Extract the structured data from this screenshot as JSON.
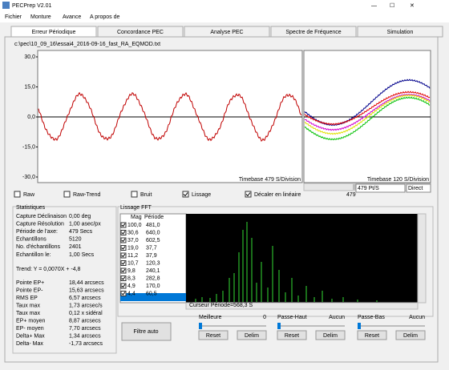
{
  "window": {
    "title": "PECPrep V2.01"
  },
  "menu": [
    "Fichier",
    "Monture",
    "Avance",
    "A propos de"
  ],
  "tabs": [
    "Erreur Périodique",
    "Concordance PEC",
    "Analyse PEC",
    "Spectre de Fréquence",
    "Simulation"
  ],
  "file_path": "c:\\pec\\10_09_16\\essai4_2016-09-16_fast_RA_EQMOD.txt",
  "plot": {
    "y_labels": [
      "30,0",
      "15,0",
      "0,0",
      "-15,0",
      "-30,0"
    ],
    "timebase_left": "Timebase 479 S/Division",
    "timebase_right": "Timebase 120 S/Division",
    "scroll_value": "479",
    "rate": "479 Pt/S",
    "mode": "Direct"
  },
  "options": [
    "Raw",
    "Raw-Trend",
    "Bruit",
    "Lissage",
    "Décaler en linéaire"
  ],
  "statistics": {
    "title": "Statistiques",
    "rows": [
      [
        "Capture Déclinaison",
        "0,00 deg"
      ],
      [
        "Capture Résolution",
        "1,00 asec/px"
      ],
      [
        "Période de l'axe:",
        "479 Secs"
      ],
      [
        "Echantillons",
        "5120"
      ],
      [
        "No. d'échantillons",
        "2401"
      ],
      [
        "Echantillon le:",
        "1,00 Secs"
      ]
    ],
    "trend": "Trend: Y = 0,0070X + -4,8",
    "rows2": [
      [
        "Pointe EP+",
        "18,44 arcsecs"
      ],
      [
        "Pointe EP-",
        "15,63 arcsecs"
      ],
      [
        "RMS EP",
        "6,57 arcsecs"
      ],
      [
        "Taux max",
        "1,73 arcsec/s"
      ],
      [
        "Taux max",
        "0,12 x sidéral"
      ],
      [
        "EP+ moyen",
        "8,87 arcsecs"
      ],
      [
        "EP- moyen",
        "7,70 arcsecs"
      ],
      [
        "Delta+ Max",
        "1,34 arcsecs"
      ],
      [
        "Delta- Max",
        "-1,73 arcsecs"
      ]
    ]
  },
  "fft": {
    "title": "Lissage FFT",
    "columns": [
      "Mag",
      "Période"
    ],
    "rows": [
      [
        "100,0",
        "481,0"
      ],
      [
        "30,6",
        "640,0"
      ],
      [
        "37,0",
        "602,5"
      ],
      [
        "19,0",
        "37,7"
      ],
      [
        "11,2",
        "37,9"
      ],
      [
        "10,7",
        "120,3"
      ],
      [
        "9,8",
        "240,1"
      ],
      [
        "8,3",
        "282,8"
      ],
      [
        "4,9",
        "170,0"
      ],
      [
        "4,4",
        "60,5"
      ]
    ],
    "cursor": "Curseur Période=568,3 S"
  },
  "controls": {
    "auto_button": "Filtre auto",
    "groups": [
      {
        "label": "Meilleure",
        "value": "0",
        "buttons": [
          "Reset",
          "Delim"
        ]
      },
      {
        "label": "Passe-Haut",
        "value": "Aucun",
        "buttons": [
          "Reset",
          "Delim"
        ]
      },
      {
        "label": "Passe-Bas",
        "value": "Aucun",
        "buttons": [
          "Reset",
          "Delim"
        ]
      }
    ]
  }
}
